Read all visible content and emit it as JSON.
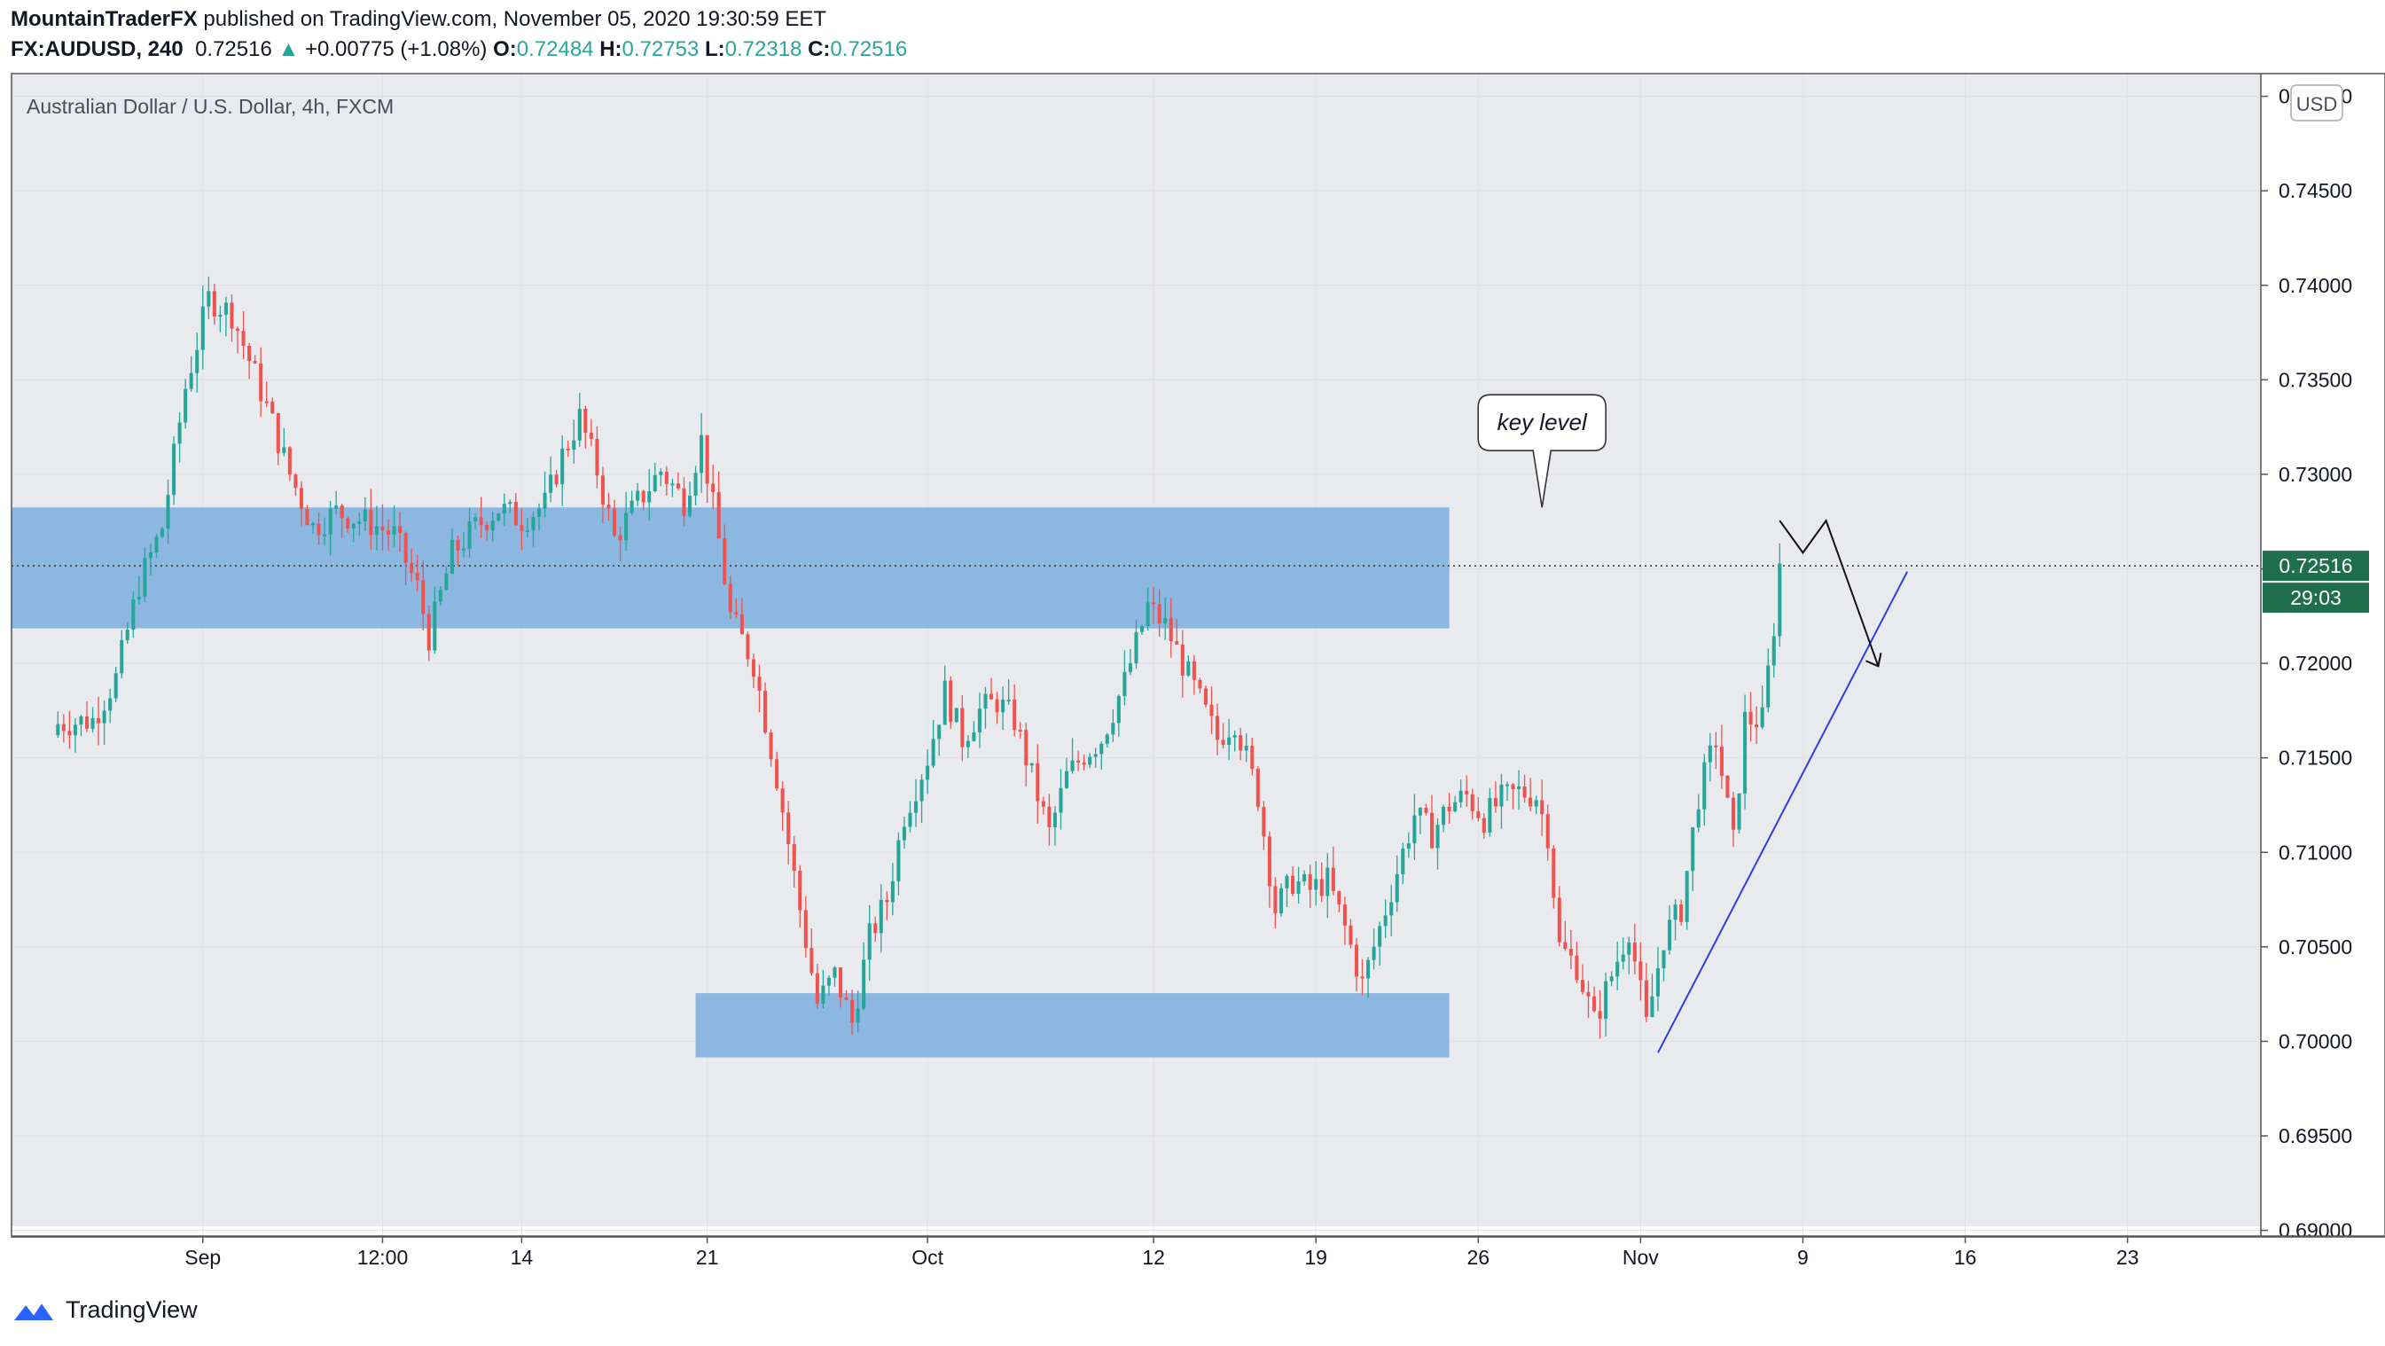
{
  "header": {
    "author": "MountainTraderFX",
    "published_text": "published on TradingView.com, November 05, 2020 19:30:59 EET",
    "symbol": "FX:AUDUSD, 240",
    "last": "0.72516",
    "change": "+0.00775 (+1.08%)",
    "open_label": "O:",
    "open": "0.72484",
    "high_label": "H:",
    "high": "0.72753",
    "low_label": "L:",
    "low": "0.72318",
    "close_label": "C:",
    "close": "0.72516"
  },
  "chart_title": "Australian Dollar / U.S. Dollar, 4h, FXCM",
  "currency": "USD",
  "price_badge": "0.72516",
  "countdown_badge": "29:03",
  "annotation": "key level",
  "footer_brand": "TradingView",
  "colors": {
    "up": "#26a69a",
    "down": "#ef5350",
    "zone": "#7aaede",
    "plot_bg": "#e9eaee",
    "badge": "#1f6f4f",
    "trendline": "#2d3ee0"
  },
  "chart_data": {
    "type": "candlestick",
    "title": "Australian Dollar / U.S. Dollar, 4h, FXCM",
    "y_ticks": [
      "0.75000",
      "0.74500",
      "0.74000",
      "0.73500",
      "0.73000",
      "0.72500",
      "0.72000",
      "0.71500",
      "0.71000",
      "0.70500",
      "0.70000",
      "0.69500",
      "0.69000"
    ],
    "ylim": [
      0.6897,
      0.7512
    ],
    "x_ticks": [
      "Sep",
      "12:00",
      "14",
      "21",
      "Oct",
      "12",
      "19",
      "26",
      "Nov",
      "9",
      "16",
      "23"
    ],
    "x_tick_index": [
      25,
      56,
      80,
      112,
      150,
      189,
      217,
      245,
      273,
      301,
      329,
      357
    ],
    "index_range": [
      -8,
      380
    ],
    "current_price": 0.72516,
    "close_path": [
      [
        0,
        0.7168
      ],
      [
        6,
        0.717
      ],
      [
        10,
        0.7192
      ],
      [
        14,
        0.7242
      ],
      [
        18,
        0.7272
      ],
      [
        22,
        0.7346
      ],
      [
        26,
        0.7393
      ],
      [
        30,
        0.7385
      ],
      [
        36,
        0.7336
      ],
      [
        40,
        0.73
      ],
      [
        44,
        0.7272
      ],
      [
        48,
        0.728
      ],
      [
        54,
        0.7274
      ],
      [
        58,
        0.7268
      ],
      [
        62,
        0.724
      ],
      [
        64,
        0.7214
      ],
      [
        68,
        0.7258
      ],
      [
        72,
        0.7272
      ],
      [
        76,
        0.7282
      ],
      [
        80,
        0.7276
      ],
      [
        84,
        0.7284
      ],
      [
        87,
        0.731
      ],
      [
        90,
        0.733
      ],
      [
        93,
        0.7302
      ],
      [
        96,
        0.7266
      ],
      [
        100,
        0.7285
      ],
      [
        104,
        0.7302
      ],
      [
        108,
        0.7286
      ],
      [
        111,
        0.7318
      ],
      [
        114,
        0.7265
      ],
      [
        116,
        0.7225
      ],
      [
        120,
        0.72
      ],
      [
        124,
        0.714
      ],
      [
        128,
        0.707
      ],
      [
        131,
        0.702
      ],
      [
        134,
        0.7035
      ],
      [
        137,
        0.701
      ],
      [
        140,
        0.7055
      ],
      [
        143,
        0.7075
      ],
      [
        146,
        0.712
      ],
      [
        150,
        0.715
      ],
      [
        153,
        0.7185
      ],
      [
        156,
        0.716
      ],
      [
        159,
        0.7175
      ],
      [
        162,
        0.718
      ],
      [
        165,
        0.717
      ],
      [
        168,
        0.714
      ],
      [
        171,
        0.711
      ],
      [
        174,
        0.714
      ],
      [
        177,
        0.7152
      ],
      [
        180,
        0.716
      ],
      [
        184,
        0.719
      ],
      [
        188,
        0.723
      ],
      [
        191,
        0.722
      ],
      [
        194,
        0.72
      ],
      [
        197,
        0.718
      ],
      [
        200,
        0.716
      ],
      [
        203,
        0.717
      ],
      [
        205,
        0.715
      ],
      [
        207,
        0.713
      ],
      [
        210,
        0.707
      ],
      [
        213,
        0.7085
      ],
      [
        216,
        0.708
      ],
      [
        219,
        0.7085
      ],
      [
        222,
        0.706
      ],
      [
        225,
        0.703
      ],
      [
        228,
        0.706
      ],
      [
        231,
        0.709
      ],
      [
        234,
        0.712
      ],
      [
        237,
        0.711
      ],
      [
        240,
        0.7125
      ],
      [
        243,
        0.713
      ],
      [
        246,
        0.7118
      ],
      [
        249,
        0.7128
      ],
      [
        252,
        0.7132
      ],
      [
        255,
        0.713
      ],
      [
        257,
        0.711
      ],
      [
        259,
        0.705
      ],
      [
        262,
        0.704
      ],
      [
        265,
        0.701
      ],
      [
        268,
        0.7035
      ],
      [
        271,
        0.706
      ],
      [
        274,
        0.7008
      ],
      [
        277,
        0.7055
      ],
      [
        280,
        0.707
      ],
      [
        283,
        0.713
      ],
      [
        286,
        0.716
      ],
      [
        289,
        0.7105
      ],
      [
        291,
        0.717
      ],
      [
        294,
        0.717
      ],
      [
        296,
        0.722
      ],
      [
        297,
        0.7252
      ]
    ],
    "zones": [
      {
        "from_index": -8,
        "to_index": 240,
        "low": 0.72185,
        "high": 0.72825
      },
      {
        "from_index": 110,
        "to_index": 240,
        "low": 0.69915,
        "high": 0.70255
      }
    ],
    "trendline": [
      [
        276,
        0.6994
      ],
      [
        319,
        0.72485
      ]
    ],
    "projection_path": [
      [
        297,
        0.72755
      ],
      [
        301,
        0.72585
      ],
      [
        305,
        0.72755
      ],
      [
        314,
        0.71985
      ]
    ],
    "projection_arrow_tip": [
      314,
      0.71985
    ],
    "annotation_point": [
      256,
      0.72825
    ]
  }
}
